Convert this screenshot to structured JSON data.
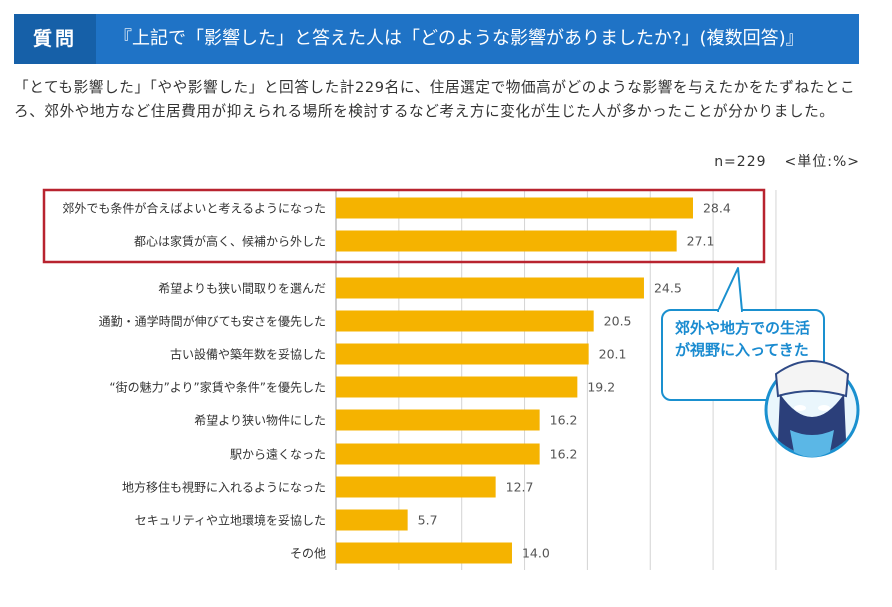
{
  "header": {
    "badge": "質問",
    "title": "『上記で「影響した」と答えた人は「どのような影響がありましたか?」(複数回答)』"
  },
  "description": "「とても影響した」「やや影響した」と回答した計229名に、住居選定で物価高がどのような影響を与えたかをたずねたところ、郊外や地方など住居費用が抑えられる場所を検討するなど考え方に変化が生じた人が多かったことが分かりました。",
  "sample_size": "n=229",
  "unit": "<単位:%>",
  "callout": "郊外や地方での生活が視野に入ってきた",
  "colors": {
    "bar": "#f5b300",
    "header": "#1f73c6",
    "highlight": "#b8232f",
    "callout": "#1a90cf"
  },
  "chart_data": {
    "type": "bar",
    "orientation": "horizontal",
    "categories": [
      "郊外でも条件が合えばよいと考えるようになった",
      "都心は家賃が高く、候補から外した",
      "希望よりも狭い間取りを選んだ",
      "通勤・通学時間が伸びても安さを優先した",
      "古い設備や築年数を妥協した",
      "“街の魅力”より”家賃や条件”を優先した",
      "希望より狭い物件にした",
      "駅から遠くなった",
      "地方移住も視野に入れるようになった",
      "セキュリティや立地環境を妥協した",
      "その他"
    ],
    "values": [
      28.4,
      27.1,
      24.5,
      20.5,
      20.1,
      19.2,
      16.2,
      16.2,
      12.7,
      5.7,
      14.0
    ],
    "value_labels": [
      "28.4",
      "27.1",
      "24.5",
      "20.5",
      "20.1",
      "19.2",
      "16.2",
      "16.2",
      "12.7",
      "5.7",
      "14.0"
    ],
    "highlighted": [
      0,
      1
    ],
    "xlim": [
      0,
      34
    ],
    "grid": true
  }
}
